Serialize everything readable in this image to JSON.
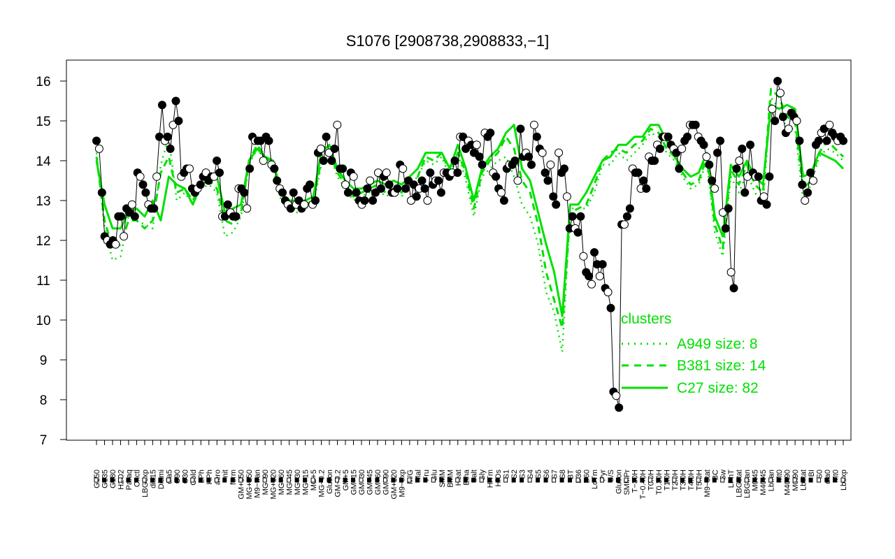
{
  "chart_data": {
    "type": "line",
    "title": "S1076 [2908738,2908833,−1]",
    "xlabel": "",
    "ylabel": "",
    "ylim": [
      7,
      16
    ],
    "yticks": [
      "7",
      "8",
      "9",
      "10",
      "11",
      "12",
      "13",
      "14",
      "15",
      "16"
    ],
    "x_tick_labels": [
      "G150",
      "G135",
      "G180",
      "H2O2",
      "Paraq",
      "Oxctl",
      "LBGexp",
      "dia15",
      "Diami",
      "dia5",
      "C90",
      "C30",
      "Cold",
      "LPh",
      "HPh",
      "aero",
      "nit",
      "ferm",
      "GM+150",
      "MG+150",
      "M9−tran",
      "MG+90",
      "MG+120",
      "MG+60",
      "MG+45",
      "MG+30",
      "MG+15",
      "MG+5",
      "MG−0.2",
      "Glucon",
      "GM−0.2",
      "GM+5",
      "GM+15",
      "GM+30",
      "GM+45",
      "GM+60",
      "GM+90",
      "GM+120",
      "M9−exp",
      "M/G",
      "Mal",
      "Fru",
      "Glu",
      "SMM",
      "BMM",
      "Heat",
      "Etha",
      "Salt",
      "Gly",
      "HiTm",
      "HiOs",
      "S1",
      "S2",
      "S3",
      "S4",
      "S5",
      "S6",
      "S7",
      "S8",
      "BT",
      "B36",
      "B60",
      "LoTm",
      "Pyr",
      "G/S",
      "Glucon",
      "SMMPr",
      "T−30H",
      "T−0.40H",
      "T0.0H",
      "T0.30H",
      "T1.0H",
      "T2.0H",
      "T3.0H",
      "T4.0H",
      "T5.0H",
      "M9−stat",
      "BC",
      "Sw",
      "LPhT",
      "LBGstat",
      "LBGtran",
      "M0t45",
      "M40t45",
      "Lbtran",
      "Mt0",
      "M40t90",
      "M0t90",
      "Lbstat",
      "BI",
      "S0",
      "dia0",
      "Mt0",
      "Lbexp"
    ],
    "series": [
      {
        "name": "A949",
        "style": "dotted",
        "values": [
          14.2,
          12.3,
          11.5,
          11.6,
          12.6,
          12.5,
          12.4,
          12.3,
          13.9,
          14.6,
          13.0,
          13.2,
          12.9,
          13.3,
          13.4,
          13.2,
          12.1,
          12.2,
          12.6,
          13.9,
          14.3,
          14.0,
          13.8,
          13.0,
          12.8,
          12.7,
          12.8,
          12.9,
          13.9,
          14.2,
          13.6,
          13.3,
          13.0,
          13.1,
          13.2,
          13.3,
          13.1,
          13.2,
          13.1,
          13.4,
          13.6,
          14.0,
          13.9,
          14.1,
          13.6,
          14.2,
          13.5,
          12.6,
          13.6,
          13.8,
          14.0,
          14.1,
          13.6,
          12.9,
          12.6,
          11.9,
          10.7,
          10.2,
          9.2,
          12.8,
          12.8,
          12.8,
          13.2,
          13.9,
          13.9,
          14.2,
          14.0,
          14.2,
          14.4,
          14.7,
          14.6,
          14.2,
          14.0,
          13.6,
          13.3,
          13.4,
          14.0,
          12.2,
          11.6,
          13.6,
          13.2,
          13.7,
          13.2,
          12.9,
          15.6,
          15.3,
          14.8,
          14.8,
          13.0,
          13.4,
          14.1,
          14.3,
          14.2,
          14.0
        ]
      },
      {
        "name": "B381",
        "style": "dashed",
        "values": [
          14.1,
          12.5,
          11.8,
          11.9,
          12.5,
          12.5,
          12.3,
          12.5,
          13.7,
          14.1,
          13.2,
          13.3,
          13.0,
          13.4,
          13.5,
          13.3,
          12.5,
          12.4,
          12.7,
          14.0,
          14.4,
          14.1,
          13.9,
          13.1,
          12.9,
          12.9,
          12.9,
          13.0,
          14.0,
          14.2,
          13.7,
          13.4,
          13.1,
          13.2,
          13.3,
          13.4,
          13.2,
          13.3,
          13.2,
          13.5,
          13.6,
          14.1,
          14.0,
          14.2,
          13.7,
          14.2,
          13.7,
          12.8,
          13.7,
          14.0,
          14.2,
          14.6,
          14.3,
          13.5,
          13.2,
          12.4,
          11.2,
          10.5,
          9.8,
          12.7,
          12.8,
          12.9,
          13.4,
          14.0,
          14.2,
          14.3,
          14.2,
          14.4,
          14.5,
          14.8,
          14.7,
          14.3,
          14.1,
          13.7,
          13.4,
          13.5,
          14.1,
          12.4,
          11.8,
          13.8,
          13.4,
          13.9,
          13.4,
          13.2,
          15.8,
          15.6,
          15.1,
          15.0,
          13.3,
          13.5,
          14.2,
          14.5,
          14.3,
          14.1
        ]
      },
      {
        "name": "C27",
        "style": "solid",
        "values": [
          14.0,
          12.9,
          12.3,
          12.3,
          12.7,
          12.8,
          12.6,
          13.0,
          12.5,
          13.6,
          13.4,
          13.3,
          12.9,
          13.4,
          13.5,
          13.6,
          12.7,
          12.8,
          12.9,
          14.0,
          14.3,
          14.1,
          14.0,
          13.2,
          13.0,
          13.0,
          13.0,
          13.1,
          14.2,
          14.4,
          13.8,
          13.5,
          13.3,
          13.3,
          13.4,
          13.5,
          13.4,
          13.5,
          13.4,
          13.6,
          13.8,
          14.2,
          14.2,
          14.2,
          13.8,
          14.4,
          13.8,
          13.0,
          13.8,
          14.1,
          14.3,
          14.7,
          14.9,
          13.8,
          13.5,
          12.7,
          11.9,
          11.2,
          10.1,
          12.9,
          12.9,
          13.2,
          13.6,
          14.0,
          14.1,
          14.4,
          14.4,
          14.6,
          14.6,
          14.9,
          14.9,
          14.5,
          14.1,
          13.8,
          13.6,
          13.7,
          14.2,
          12.6,
          12.1,
          13.9,
          13.6,
          14.0,
          13.6,
          13.4,
          15.4,
          15.3,
          15.4,
          15.3,
          13.6,
          13.7,
          14.2,
          14.1,
          14.0,
          13.8
        ]
      }
    ],
    "points": [
      14.5,
      14.3,
      13.2,
      12.1,
      12.0,
      11.9,
      12.0,
      11.9,
      12.6,
      12.6,
      12.1,
      12.8,
      12.7,
      12.9,
      12.6,
      13.7,
      13.6,
      13.4,
      13.2,
      12.9,
      12.8,
      12.8,
      13.6,
      14.6,
      15.4,
      14.5,
      14.6,
      14.3,
      14.9,
      15.5,
      15.0,
      13.6,
      13.7,
      13.8,
      13.8,
      13.3,
      13.2,
      13.3,
      13.4,
      13.6,
      13.7,
      13.5,
      13.6,
      13.6,
      14.0,
      13.7,
      12.6,
      12.6,
      12.9,
      12.7,
      12.6,
      12.6,
      13.3,
      13.3,
      13.2,
      12.8,
      13.8,
      14.6,
      14.5,
      14.5,
      14.5,
      14.0,
      14.6,
      14.5,
      13.9,
      13.8,
      13.5,
      13.3,
      13.2,
      13.0,
      12.9,
      12.8,
      13.2,
      12.9,
      13.0,
      12.8,
      12.9,
      13.3,
      13.4,
      12.9,
      13.0,
      14.2,
      14.3,
      14.0,
      14.6,
      14.2,
      14.0,
      14.3,
      14.9,
      13.8,
      13.8,
      13.4,
      13.2,
      13.7,
      13.6,
      13.2,
      13.0,
      12.9,
      13.0,
      13.3,
      13.5,
      13.0,
      13.2,
      13.7,
      13.3,
      13.6,
      13.7,
      13.4,
      13.2,
      13.2,
      13.3,
      13.9,
      13.8,
      13.3,
      13.5,
      13.0,
      13.4,
      13.1,
      13.3,
      13.5,
      13.3,
      13.0,
      13.7,
      13.4,
      13.5,
      13.5,
      13.2,
      13.7,
      13.7,
      13.6,
      13.7,
      14.0,
      13.7,
      14.6,
      14.6,
      14.3,
      14.5,
      14.4,
      14.2,
      14.4,
      14.1,
      13.9,
      14.7,
      14.6,
      14.7,
      13.7,
      13.6,
      13.3,
      13.2,
      13.0,
      13.8,
      13.9,
      13.9,
      14.0,
      13.5,
      14.8,
      14.1,
      14.2,
      14.1,
      13.9,
      14.9,
      14.6,
      14.3,
      14.2,
      13.7,
      13.5,
      13.9,
      13.1,
      12.9,
      14.2,
      13.7,
      13.8,
      13.1,
      12.3,
      12.6,
      12.3,
      12.2,
      12.6,
      11.6,
      11.2,
      11.1,
      10.9,
      11.7,
      11.4,
      11.1,
      11.4,
      10.8,
      10.7,
      10.3,
      8.2,
      8.1,
      7.8,
      12.4,
      12.4,
      12.6,
      12.8,
      13.8,
      13.7,
      13.7,
      13.3,
      13.5,
      13.3,
      14.1,
      14.0,
      14.0,
      14.4,
      14.3,
      14.6,
      14.6,
      14.6,
      14.4,
      14.3,
      14.2,
      13.8,
      14.3,
      14.5,
      14.6,
      14.9,
      14.9,
      14.9,
      14.6,
      14.5,
      14.4,
      14.1,
      13.9,
      13.5,
      13.3,
      14.2,
      14.5,
      12.7,
      12.3,
      12.8,
      11.2,
      10.8,
      13.8,
      14.0,
      14.3,
      13.2,
      13.6,
      14.4,
      13.7,
      13.6,
      13.6,
      13.0,
      13.1,
      12.9,
      13.6,
      15.3,
      15.0,
      16.0,
      15.7,
      15.1,
      14.7,
      14.8,
      15.2,
      15.1,
      15.0,
      14.5,
      13.4,
      13.0,
      13.2,
      13.7,
      13.5,
      14.4,
      14.5,
      14.7,
      14.8,
      14.5,
      14.9,
      14.7,
      14.6,
      14.5,
      14.6,
      14.5
    ],
    "legend": {
      "position": "bottom-right",
      "title": "clusters",
      "entries": [
        {
          "label": "A949 size: 8",
          "style": "dotted"
        },
        {
          "label": "B381 size: 14",
          "style": "dashed"
        },
        {
          "label": "C27 size: 82",
          "style": "solid"
        }
      ]
    },
    "colors": {
      "cluster": "#00e000",
      "points_dark": "#000000",
      "points_light": "#ffffff"
    },
    "grid": false
  }
}
